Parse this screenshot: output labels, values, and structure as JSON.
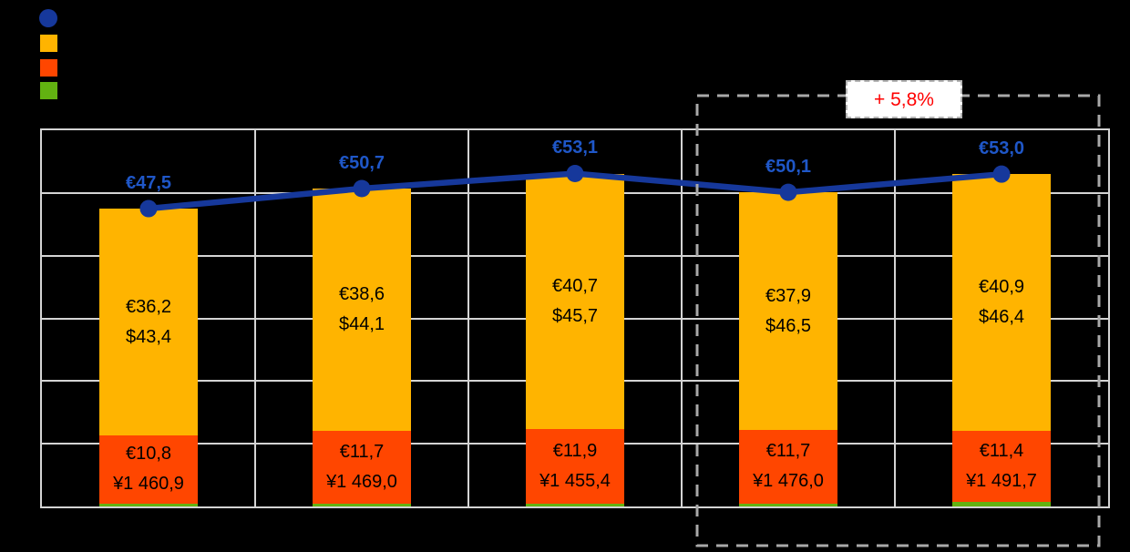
{
  "canvas": {
    "background": "#000000"
  },
  "legend": {
    "position": "top-left",
    "items": [
      {
        "name": "total-line",
        "marker": "circle",
        "color": "#16389B"
      },
      {
        "name": "segment-orange",
        "marker": "square",
        "color": "#FFB400"
      },
      {
        "name": "segment-red",
        "marker": "square",
        "color": "#FF4600"
      },
      {
        "name": "segment-green",
        "marker": "square",
        "color": "#62B211"
      }
    ]
  },
  "annotation": {
    "label": "+ 5,8%",
    "text_color": "#FF0000"
  },
  "chart_data": {
    "type": "bar",
    "subtype": "stacked-bars-with-total-line",
    "categories": [
      "",
      "",
      "",
      "",
      ""
    ],
    "ylim": [
      0,
      60
    ],
    "grid_step": 10,
    "grid": true,
    "legend_position": "top-left",
    "series": [
      {
        "name": "orange-top-segment",
        "type": "bar",
        "color": "#FFB400",
        "values": [
          36.2,
          38.6,
          40.7,
          37.9,
          40.9
        ],
        "labels": [
          [
            "€36,2",
            "$43,4"
          ],
          [
            "€38,6",
            "$44,1"
          ],
          [
            "€40,7",
            "$45,7"
          ],
          [
            "€37,9",
            "$46,5"
          ],
          [
            "€40,9",
            "$46,4"
          ]
        ]
      },
      {
        "name": "red-middle-segment",
        "type": "bar",
        "color": "#FF4600",
        "values": [
          10.8,
          11.7,
          11.9,
          11.7,
          11.4
        ],
        "labels": [
          [
            "€10,8",
            "¥1 460,9"
          ],
          [
            "€11,7",
            "¥1 469,0"
          ],
          [
            "€11,9",
            "¥1 455,4"
          ],
          [
            "€11,7",
            "¥1 476,0"
          ],
          [
            "€11,4",
            "¥1 491,7"
          ]
        ]
      },
      {
        "name": "green-bottom-segment",
        "type": "bar",
        "color": "#62B211",
        "estimated": true,
        "values": [
          0.5,
          0.4,
          0.5,
          0.5,
          0.7
        ],
        "labels": [
          [],
          [],
          [],
          [],
          []
        ]
      },
      {
        "name": "total-line",
        "type": "line",
        "color": "#16389B",
        "label_color": "#1F57C8",
        "values": [
          47.5,
          50.7,
          53.1,
          50.1,
          53.0
        ],
        "labels": [
          "€47,5",
          "€50,7",
          "€53,1",
          "€50,1",
          "€53,0"
        ]
      }
    ],
    "highlight": {
      "group_indexes": [
        3,
        4
      ],
      "style": "dashed-box",
      "label": "+ 5,8%"
    }
  }
}
